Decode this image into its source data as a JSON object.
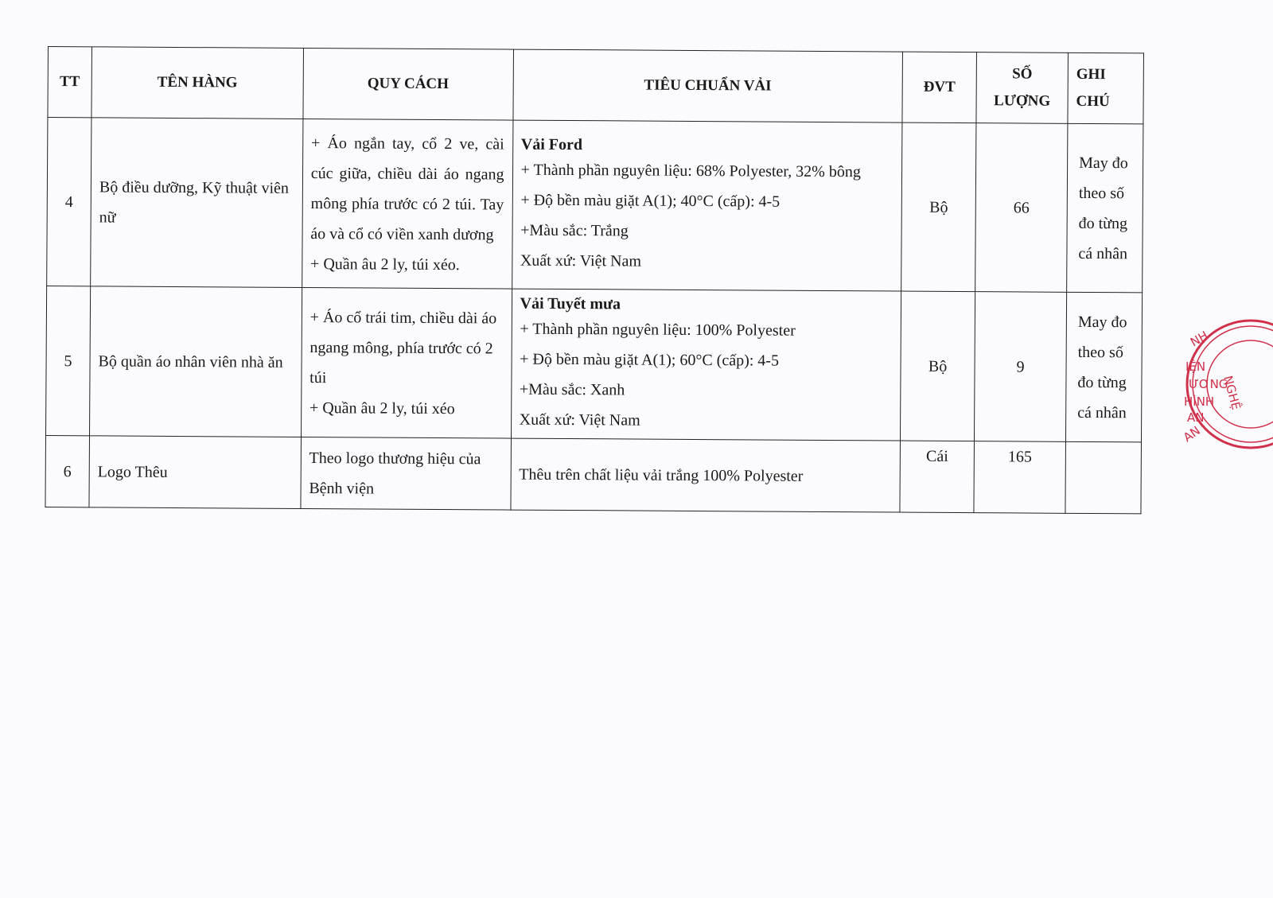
{
  "table": {
    "headers": {
      "tt": "TT",
      "ten_hang": "TÊN HÀNG",
      "quy_cach": "QUY CÁCH",
      "tieu_chuan": "TIÊU CHUẨN VẢI",
      "dvt": "ĐVT",
      "so_luong_1": "SỐ",
      "so_luong_2": "LƯỢNG",
      "ghi_chu_1": "GHI",
      "ghi_chu_2": "CHÚ"
    },
    "rows": [
      {
        "tt": "4",
        "ten_hang": "Bộ điều dưỡng, Kỹ thuật viên nữ",
        "quy_cach": [
          "+ Áo ngắn tay, cổ 2 ve, cài cúc giữa, chiều dài áo ngang mông phía trước có 2 túi. Tay áo và cổ có viền xanh dương",
          "+ Quần âu 2 ly, túi xéo."
        ],
        "tieu_chuan_title": "Vải Ford",
        "tieu_chuan": [
          "+ Thành phần nguyên liệu: 68% Polyester, 32% bông",
          "+ Độ bền màu giặt A(1); 40°C (cấp): 4-5",
          "+Màu sắc: Trắng",
          "Xuất xứ: Việt Nam"
        ],
        "dvt": "Bộ",
        "so_luong": "66",
        "ghi_chu": "May đo theo số đo từng cá nhân"
      },
      {
        "tt": "5",
        "ten_hang": "Bộ quần áo nhân viên nhà ăn",
        "quy_cach": [
          "+ Áo cổ trái tim, chiều dài áo ngang mông, phía trước có 2 túi",
          "+ Quần âu 2 ly, túi xéo"
        ],
        "tieu_chuan_title": "Vải Tuyết mưa",
        "tieu_chuan": [
          "+ Thành phần nguyên liệu: 100% Polyester",
          "+ Độ bền màu giặt A(1); 60°C (cấp): 4-5",
          "+Màu sắc: Xanh",
          "Xuất xứ: Việt Nam"
        ],
        "dvt": "Bộ",
        "so_luong": "9",
        "ghi_chu": "May đo theo số đo từng cá nhân"
      },
      {
        "tt": "6",
        "ten_hang": "Logo Thêu",
        "quy_cach": [
          "Theo logo thương hiệu của Bệnh viện"
        ],
        "tieu_chuan_title": "",
        "tieu_chuan": [
          "Thêu trên chất liệu vải trắng 100% Polyester"
        ],
        "dvt": "Cái",
        "so_luong": "165",
        "ghi_chu": ""
      }
    ]
  },
  "stamp": {
    "text": "...NH ...VIỆN ...ƯƠNG ...HÌNH ...AN NGHỆ AN",
    "color": "#d0304a"
  }
}
